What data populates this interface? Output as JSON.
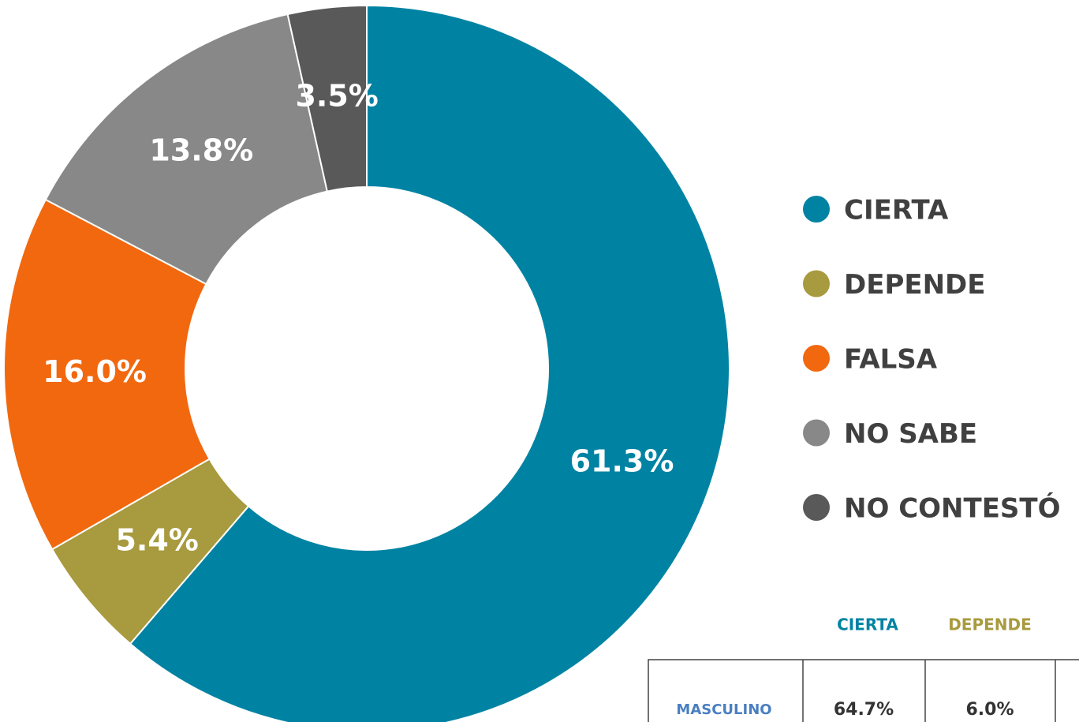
{
  "chart_data": {
    "type": "donut",
    "categories": [
      "CIERTA",
      "DEPENDE",
      "FALSA",
      "NO SABE",
      "NO CONTESTÓ"
    ],
    "values": [
      61.3,
      5.4,
      16.0,
      13.8,
      3.5
    ],
    "value_labels": [
      "61.3%",
      "5.4%",
      "16.0%",
      "13.8%",
      "3.5%"
    ],
    "colors": [
      "#0083a3",
      "#a89a3e",
      "#f2680f",
      "#888888",
      "#595959"
    ],
    "legend": "right"
  },
  "table": {
    "header": [
      "CIERTA",
      "DEPENDE"
    ],
    "rows": [
      [
        "MASCULINO",
        "64.7%",
        "6.0%"
      ]
    ]
  }
}
